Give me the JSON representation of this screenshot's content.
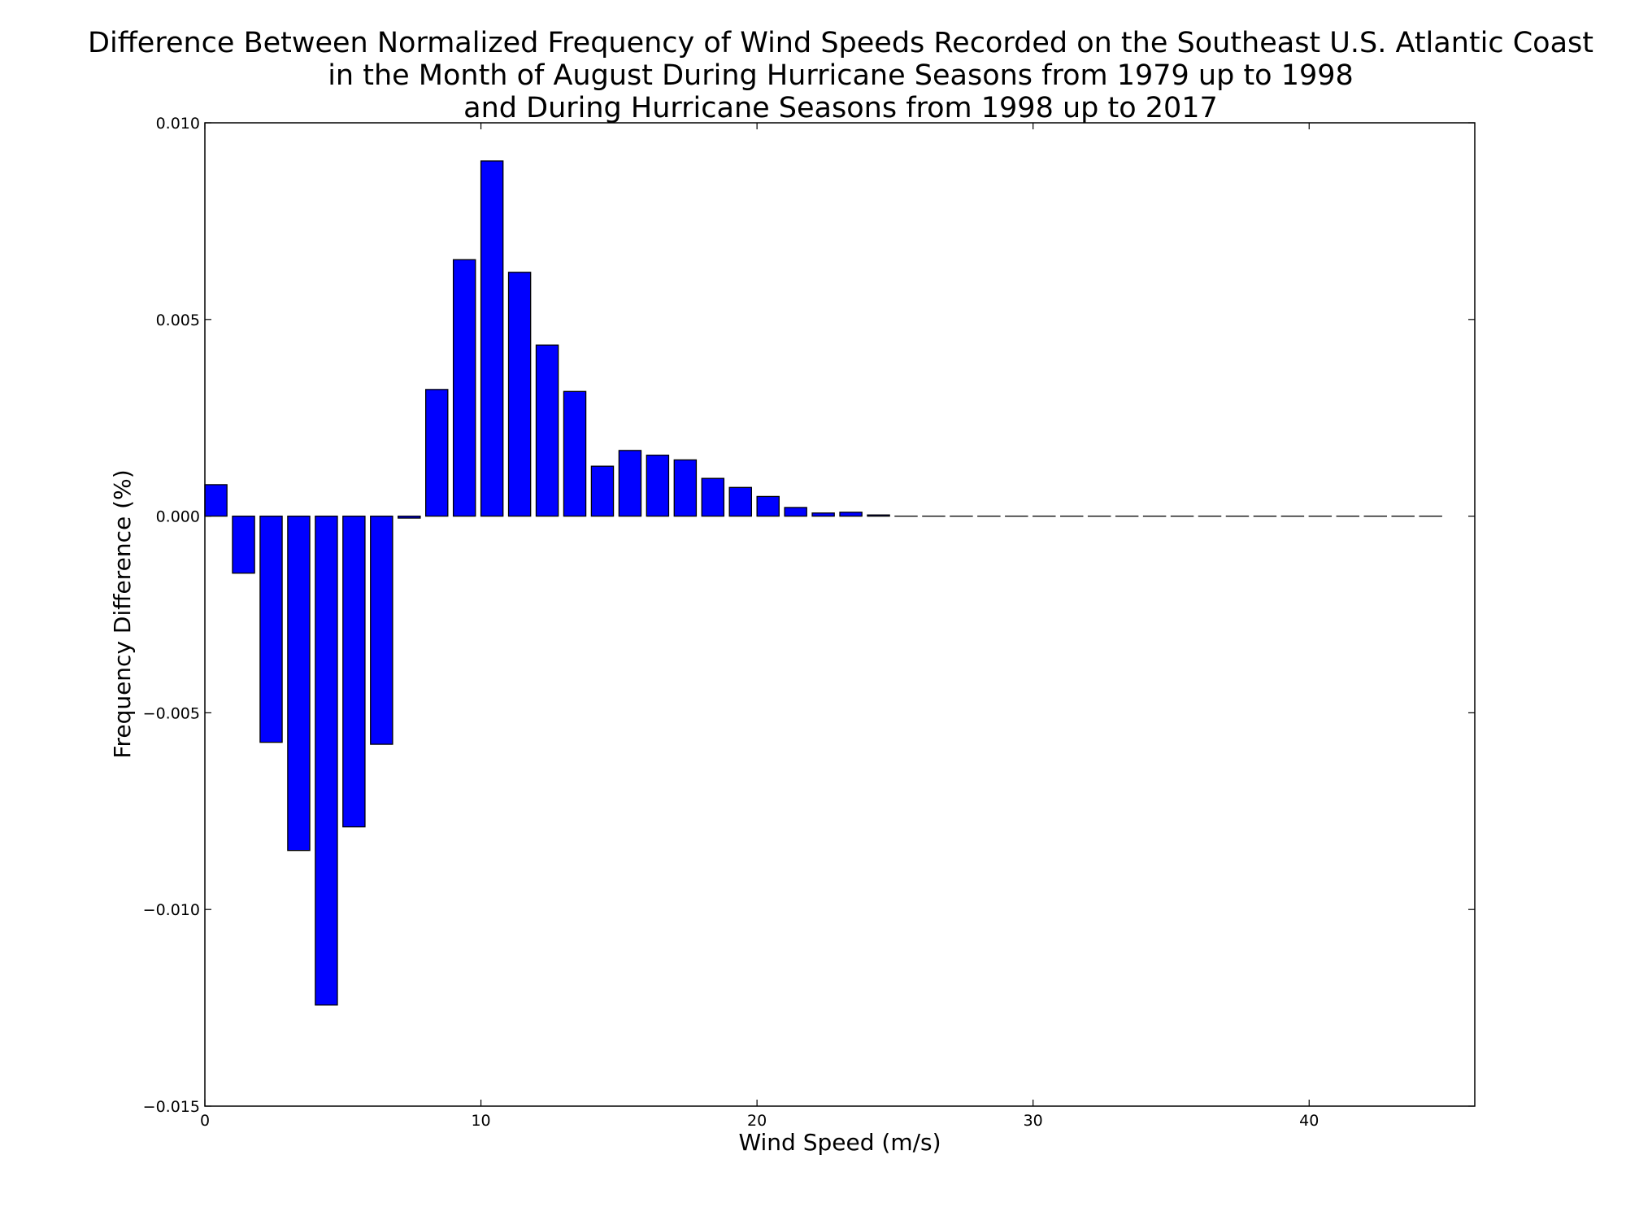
{
  "chart_data": {
    "type": "bar",
    "title_lines": [
      "Difference Between Normalized Frequency of Wind Speeds Recorded on the Southeast U.S. Atlantic Coast",
      "in the Month of August During Hurricane Seasons from 1979 up to 1998",
      "and During Hurricane Seasons from 1998 up to 2017"
    ],
    "xlabel": "Wind Speed (m/s)",
    "ylabel": "Frequency Difference (%)",
    "xlim": [
      0,
      46
    ],
    "ylim": [
      -0.015,
      0.01
    ],
    "x_ticks": [
      0,
      10,
      20,
      30,
      40
    ],
    "x_tick_labels": [
      "0",
      "10",
      "20",
      "30",
      "40"
    ],
    "y_ticks": [
      0.01,
      0.005,
      0.0,
      -0.005,
      -0.01,
      -0.015
    ],
    "y_tick_labels": [
      "0.010",
      "0.005",
      "0.000",
      "−0.005",
      "−0.010",
      "−0.015"
    ],
    "bar_width": 0.8,
    "bar_color": "#0000ff",
    "edge_color": "#000000",
    "grid": false,
    "bars": [
      {
        "x": 0,
        "value": 0.0008
      },
      {
        "x": 1,
        "value": -0.00145
      },
      {
        "x": 2,
        "value": -0.00575
      },
      {
        "x": 3,
        "value": -0.0085
      },
      {
        "x": 4,
        "value": -0.01243
      },
      {
        "x": 5,
        "value": -0.0079
      },
      {
        "x": 6,
        "value": -0.0058
      },
      {
        "x": 7,
        "value": -5e-05
      },
      {
        "x": 8,
        "value": 0.00322
      },
      {
        "x": 9,
        "value": 0.00652
      },
      {
        "x": 10,
        "value": 0.00903
      },
      {
        "x": 11,
        "value": 0.0062
      },
      {
        "x": 12,
        "value": 0.00435
      },
      {
        "x": 13,
        "value": 0.00317
      },
      {
        "x": 14,
        "value": 0.00127
      },
      {
        "x": 15,
        "value": 0.00167
      },
      {
        "x": 16,
        "value": 0.00155
      },
      {
        "x": 17,
        "value": 0.00143
      },
      {
        "x": 18,
        "value": 0.00096
      },
      {
        "x": 19,
        "value": 0.00073
      },
      {
        "x": 20,
        "value": 0.0005
      },
      {
        "x": 21,
        "value": 0.00022
      },
      {
        "x": 22,
        "value": 8e-05
      },
      {
        "x": 23,
        "value": 0.0001
      },
      {
        "x": 24,
        "value": 3e-05
      },
      {
        "x": 25,
        "value": 0
      },
      {
        "x": 26,
        "value": 0
      },
      {
        "x": 27,
        "value": 0
      },
      {
        "x": 28,
        "value": 0
      },
      {
        "x": 29,
        "value": 0
      },
      {
        "x": 30,
        "value": 0
      },
      {
        "x": 31,
        "value": 0
      },
      {
        "x": 32,
        "value": 0
      },
      {
        "x": 33,
        "value": 0
      },
      {
        "x": 34,
        "value": 0
      },
      {
        "x": 35,
        "value": 0
      },
      {
        "x": 36,
        "value": 0
      },
      {
        "x": 37,
        "value": 0
      },
      {
        "x": 38,
        "value": 0
      },
      {
        "x": 39,
        "value": 0
      },
      {
        "x": 40,
        "value": 0
      },
      {
        "x": 41,
        "value": 0
      },
      {
        "x": 42,
        "value": 0
      },
      {
        "x": 43,
        "value": 0
      },
      {
        "x": 44,
        "value": 0
      }
    ]
  }
}
